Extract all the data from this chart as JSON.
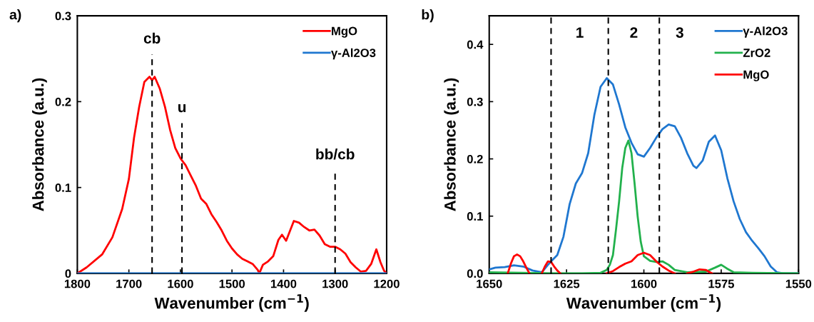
{
  "chart_data": [
    {
      "type": "line",
      "title": "a)",
      "xlabel": "Wavenumber (cm$^{−1}$)",
      "ylabel": "Absorbance (a.u.)",
      "xlim": [
        1800,
        1200
      ],
      "xticks": [
        1800,
        1700,
        1600,
        1500,
        1400,
        1300,
        1200
      ],
      "ylim": [
        0,
        0.3
      ],
      "yticks": [
        0,
        0.1,
        0.2,
        0.3
      ],
      "grid": false,
      "legend": "top right",
      "marker": "none",
      "line_style": "solid",
      "series": [
        {
          "name": "MgO",
          "color": "#ff0000",
          "x": [
            1800,
            1782,
            1752,
            1732,
            1713,
            1700,
            1690,
            1680,
            1670,
            1660,
            1655,
            1650,
            1640,
            1630,
            1620,
            1610,
            1600,
            1590,
            1580,
            1570,
            1560,
            1550,
            1540,
            1530,
            1520,
            1510,
            1500,
            1490,
            1480,
            1470,
            1460,
            1450,
            1447,
            1440,
            1430,
            1420,
            1410,
            1403,
            1395,
            1380,
            1370,
            1360,
            1350,
            1340,
            1330,
            1320,
            1310,
            1300,
            1290,
            1280,
            1270,
            1260,
            1250,
            1240,
            1230,
            1220,
            1212,
            1205,
            1200
          ],
          "values": [
            0,
            0.007,
            0.022,
            0.042,
            0.075,
            0.11,
            0.158,
            0.194,
            0.223,
            0.229,
            0.225,
            0.229,
            0.215,
            0.194,
            0.167,
            0.146,
            0.134,
            0.126,
            0.114,
            0.102,
            0.087,
            0.081,
            0.069,
            0.06,
            0.05,
            0.038,
            0.029,
            0.022,
            0.017,
            0.014,
            0.011,
            0.004,
            0,
            0.01,
            0.014,
            0.02,
            0.039,
            0.045,
            0.038,
            0.061,
            0.059,
            0.054,
            0.05,
            0.051,
            0.044,
            0.034,
            0.031,
            0.031,
            0.028,
            0.023,
            0.013,
            0.007,
            0.002,
            0.003,
            0.011,
            0.028,
            0.013,
            0.003,
            0
          ]
        },
        {
          "name": "γ-Al2O3",
          "color": "#1f77d0",
          "x": [
            1800,
            1725,
            1655,
            1600,
            1300,
            1220,
            1200
          ],
          "values": [
            0,
            0,
            0,
            0,
            0,
            0,
            0
          ]
        }
      ],
      "ref_lines": [
        {
          "axis": "x",
          "value": 1655,
          "color": "#000000",
          "line_style": "dashed"
        },
        {
          "axis": "x",
          "value": 1597,
          "color": "#000000",
          "line_style": "dashed"
        },
        {
          "axis": "x",
          "value": 1300,
          "color": "#000000",
          "line_style": "dashed"
        }
      ],
      "annotations": [
        {
          "text": "cb",
          "x": 1655,
          "y": 0.255
        },
        {
          "text": "u",
          "x": 1597,
          "y": 0.175
        },
        {
          "text": "bb/cb",
          "x": 1300,
          "y": 0.12
        }
      ]
    },
    {
      "type": "line",
      "title": "b)",
      "xlabel": "Wavenumber (cm$^{−1}$)",
      "ylabel": "Absorbance (a.u.)",
      "xlim": [
        1650,
        1550
      ],
      "xticks": [
        1650,
        1625,
        1600,
        1575,
        1550
      ],
      "ylim": [
        0,
        0.45
      ],
      "yticks": [
        {
          "value": 0,
          "label": "0.0"
        },
        0.1,
        0.2,
        0.3,
        0.4
      ],
      "grid": false,
      "legend": "top right",
      "marker": "none",
      "line_style": "solid",
      "series": [
        {
          "name": "γ-Al2O3",
          "color": "#1f77d0",
          "x": [
            1650,
            1648,
            1645,
            1642,
            1639,
            1636,
            1633,
            1631,
            1630,
            1628,
            1626,
            1624,
            1622,
            1620,
            1618,
            1616,
            1614,
            1612,
            1610,
            1608,
            1606,
            1604,
            1602,
            1600,
            1598,
            1596,
            1594,
            1592,
            1590,
            1588,
            1586,
            1584,
            1583,
            1581,
            1579,
            1577,
            1575,
            1573,
            1571,
            1569,
            1567,
            1565,
            1563,
            1561,
            1559,
            1557,
            1555,
            1550
          ],
          "values": [
            0.007,
            0.01,
            0.011,
            0.014,
            0.012,
            0.005,
            0.002,
            0.015,
            0.021,
            0.032,
            0.064,
            0.121,
            0.157,
            0.175,
            0.21,
            0.277,
            0.326,
            0.341,
            0.33,
            0.295,
            0.255,
            0.228,
            0.208,
            0.204,
            0.219,
            0.237,
            0.252,
            0.26,
            0.257,
            0.237,
            0.21,
            0.188,
            0.184,
            0.197,
            0.23,
            0.241,
            0.215,
            0.166,
            0.126,
            0.095,
            0.072,
            0.057,
            0.044,
            0.03,
            0.012,
            0.002,
            0,
            0
          ]
        },
        {
          "name": "ZrO2",
          "color": "#22b14c",
          "x": [
            1650,
            1630,
            1620,
            1614,
            1612,
            1611,
            1610,
            1609,
            1608,
            1607,
            1606,
            1605,
            1604,
            1603,
            1602,
            1601,
            1600,
            1598,
            1596,
            1594,
            1592,
            1590,
            1586,
            1580,
            1577,
            1575,
            1573,
            1571,
            1565,
            1550
          ],
          "values": [
            0.002,
            0,
            0,
            0.001,
            0.006,
            0.015,
            0.032,
            0.077,
            0.126,
            0.184,
            0.219,
            0.232,
            0.21,
            0.157,
            0.099,
            0.055,
            0.03,
            0.022,
            0.02,
            0.021,
            0.015,
            0.006,
            0.002,
            0.003,
            0.01,
            0.015,
            0.008,
            0.002,
            0.001,
            0
          ]
        },
        {
          "name": "MgO",
          "color": "#ff0000",
          "x": [
            1644,
            1643,
            1642,
            1641,
            1640,
            1639,
            1638,
            1637,
            1635,
            1633,
            1632,
            1631,
            1630,
            1629,
            1628,
            1627,
            1620,
            1612,
            1610,
            1608,
            1606,
            1604,
            1602,
            1600,
            1598,
            1596,
            1594,
            1592,
            1590,
            1588,
            1586,
            1584,
            1582,
            1580,
            1578
          ],
          "values": [
            0,
            0.017,
            0.03,
            0.033,
            0.03,
            0.021,
            0.01,
            0,
            null,
            0,
            0.012,
            0.021,
            0.02,
            0.012,
            0.005,
            0,
            null,
            0,
            0.004,
            0.011,
            0.017,
            0.021,
            0.032,
            0.036,
            0.032,
            0.021,
            0.012,
            0.005,
            0,
            null,
            0,
            0.003,
            0.007,
            0.006,
            0
          ]
        }
      ],
      "ref_lines": [
        {
          "axis": "x",
          "value": 1630,
          "color": "#000000",
          "line_style": "dashed"
        },
        {
          "axis": "x",
          "value": 1611.5,
          "color": "#000000",
          "line_style": "dashed"
        },
        {
          "axis": "x",
          "value": 1595,
          "color": "#000000",
          "line_style": "dashed"
        }
      ],
      "annotations": [
        "1",
        "2",
        "3"
      ]
    }
  ]
}
